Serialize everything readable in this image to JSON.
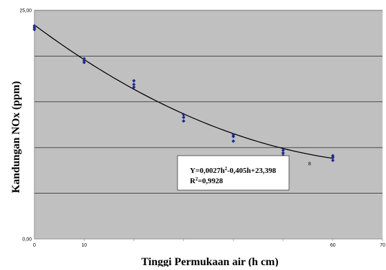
{
  "chart_data": {
    "type": "scatter",
    "title": "",
    "xlabel": "Tinggi Permukaan air (h cm)",
    "ylabel": "Kandungan NOx (ppm)",
    "xlim": [
      0,
      70
    ],
    "ylim": [
      0,
      25
    ],
    "y_ticks": [
      {
        "value": 0,
        "label": "0,00"
      },
      {
        "value": 25,
        "label": "25,00"
      }
    ],
    "x_ticks": [
      {
        "value": 0,
        "label": "0"
      },
      {
        "value": 10,
        "label": "10"
      },
      {
        "value": 60,
        "label": "60"
      },
      {
        "value": 70,
        "label": "70"
      }
    ],
    "y_gridlines": [
      5,
      10,
      15,
      20,
      25
    ],
    "grid": true,
    "plot_background": "#c0c0c0",
    "marker_color": "#1f2a8a",
    "series": [
      {
        "points": [
          [
            0,
            22.9
          ],
          [
            0,
            23.1
          ],
          [
            0,
            23.3
          ],
          [
            10,
            19.3
          ],
          [
            10,
            19.5
          ],
          [
            10,
            19.7
          ],
          [
            20,
            16.6
          ],
          [
            20,
            16.9
          ],
          [
            20,
            17.3
          ],
          [
            30,
            12.9
          ],
          [
            30,
            13.3
          ],
          [
            30,
            13.6
          ],
          [
            40,
            10.7
          ],
          [
            40,
            11.2
          ],
          [
            40,
            11.4
          ],
          [
            50,
            9.1
          ],
          [
            50,
            9.4
          ],
          [
            50,
            9.7
          ],
          [
            60,
            8.6
          ],
          [
            60,
            8.9
          ],
          [
            60,
            9.1
          ]
        ]
      }
    ],
    "trendline": {
      "type": "polynomial",
      "coefficients": {
        "a": 0.0027,
        "b": -0.405,
        "c": 23.398
      },
      "x_range": [
        0,
        60
      ],
      "equation_label": "Y=0,0027h",
      "equation_exp": "2",
      "equation_rest": "-0,405h+23,398",
      "r2_label": "R",
      "r2_exp": "2",
      "r2_rest": "=0,9928"
    },
    "stray_label": "8"
  }
}
